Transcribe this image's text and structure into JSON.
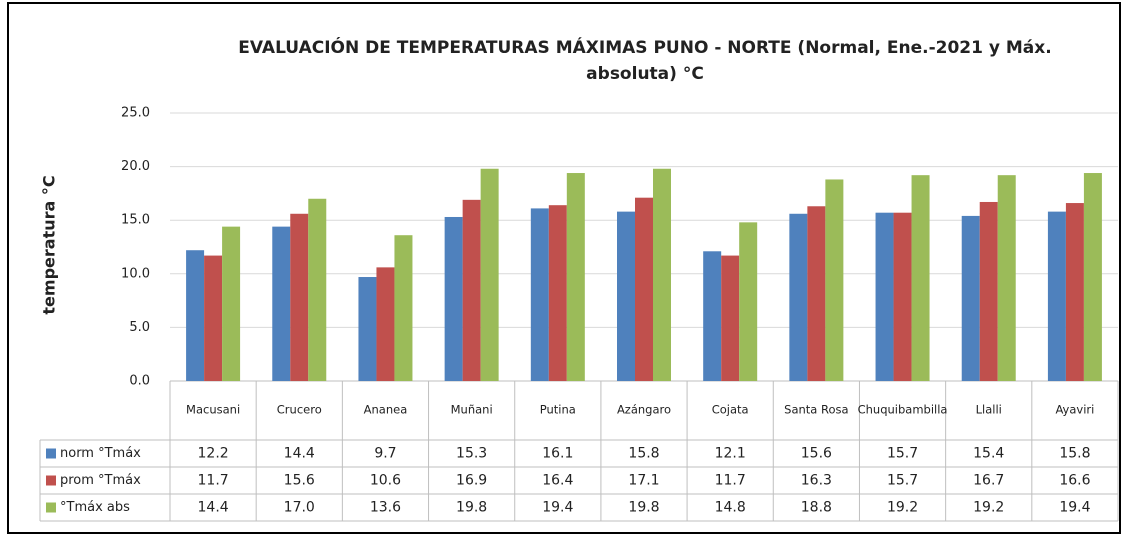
{
  "chart_data": {
    "type": "bar",
    "title": "EVALUACIÓN DE TEMPERATURAS MÁXIMAS PUNO - NORTE (Normal, Ene.-2021 y Máx. absoluta) °C",
    "y_label": "temperatura °C",
    "categories": [
      "Macusani",
      "Crucero",
      "Ananea",
      "Muñani",
      "Putina",
      "Azángaro",
      "Cojata",
      "Santa Rosa",
      "Chuquibambilla",
      "Llalli",
      "Ayaviri"
    ],
    "series": [
      {
        "name": "norm °Tmáx",
        "color": "#4f81bd",
        "values": [
          12.2,
          14.4,
          9.7,
          15.3,
          16.1,
          15.8,
          12.1,
          15.6,
          15.7,
          15.4,
          15.8
        ],
        "value_labels": [
          "12.2",
          "14.4",
          "9.7",
          "15.3",
          "16.1",
          "15.8",
          "12.1",
          "15.6",
          "15.7",
          "15.4",
          "15.8"
        ]
      },
      {
        "name": "prom °Tmáx",
        "color": "#c0504d",
        "values": [
          11.7,
          15.6,
          10.6,
          16.9,
          16.4,
          17.1,
          11.7,
          16.3,
          15.7,
          16.7,
          16.6
        ],
        "value_labels": [
          "11.7",
          "15.6",
          "10.6",
          "16.9",
          "16.4",
          "17.1",
          "11.7",
          "16.3",
          "15.7",
          "16.7",
          "16.6"
        ]
      },
      {
        "name": "°Tmáx abs",
        "color": "#9bbb59",
        "values": [
          14.4,
          17.0,
          13.6,
          19.8,
          19.4,
          19.8,
          14.8,
          18.8,
          19.2,
          19.2,
          19.4
        ],
        "value_labels": [
          "14.4",
          "17.0",
          "13.6",
          "19.8",
          "19.4",
          "19.8",
          "14.8",
          "18.8",
          "19.2",
          "19.2",
          "19.4"
        ]
      }
    ],
    "ylim": [
      0,
      25
    ],
    "yticks": [
      {
        "value": 0,
        "label": "0.0"
      },
      {
        "value": 5,
        "label": "5.0"
      },
      {
        "value": 10,
        "label": "10.0"
      },
      {
        "value": 15,
        "label": "15.0"
      },
      {
        "value": 20,
        "label": "20.0"
      },
      {
        "value": 25,
        "label": "25.0"
      }
    ],
    "grid": true
  }
}
